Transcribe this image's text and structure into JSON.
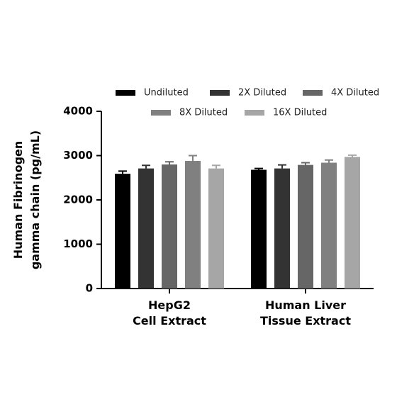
{
  "chart_data": {
    "type": "bar",
    "y_label": "Human Fibrinogen\ngamma chain (pg/mL)",
    "categories": [
      "HepG2\nCell Extract",
      "Human Liver\nTissue Extract"
    ],
    "series": [
      {
        "name": "Undiluted",
        "color": "#000000",
        "values": [
          2590,
          2680
        ],
        "errors": [
          60,
          30
        ]
      },
      {
        "name": "2X Diluted",
        "color": "#333333",
        "values": [
          2710,
          2710
        ],
        "errors": [
          70,
          80
        ]
      },
      {
        "name": "4X Diluted",
        "color": "#666666",
        "values": [
          2800,
          2790
        ],
        "errors": [
          60,
          50
        ]
      },
      {
        "name": "8X Diluted",
        "color": "#808080",
        "values": [
          2880,
          2840
        ],
        "errors": [
          120,
          60
        ]
      },
      {
        "name": "16X Diluted",
        "color": "#a6a6a6",
        "values": [
          2710,
          2970
        ],
        "errors": [
          70,
          40
        ]
      }
    ],
    "ylim": [
      0,
      4000
    ],
    "yticks": [
      0,
      1000,
      2000,
      3000,
      4000
    ]
  }
}
